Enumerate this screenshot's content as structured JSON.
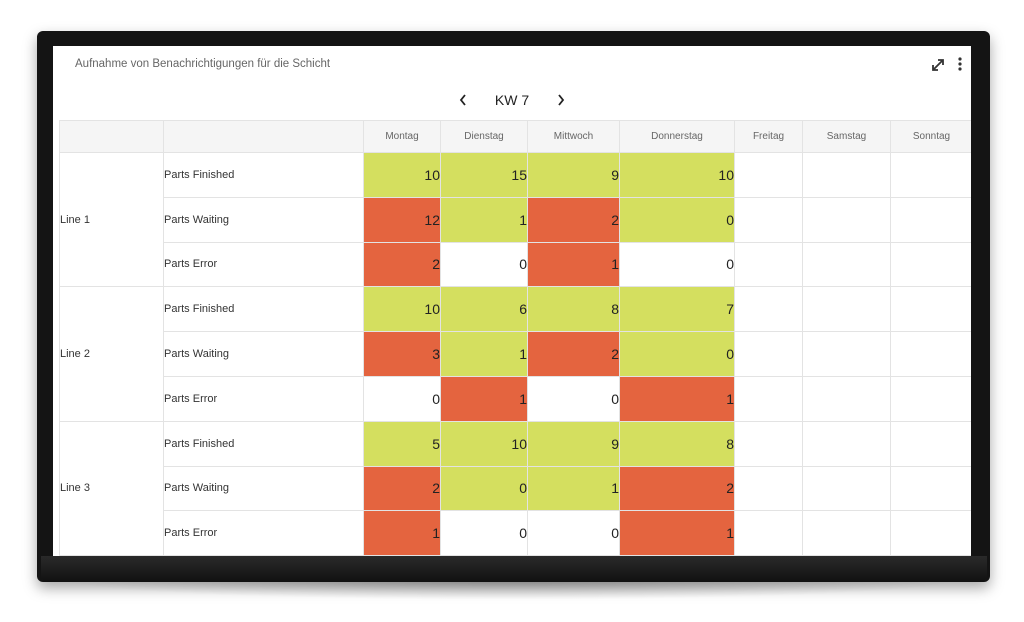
{
  "panel": {
    "title": "Aufnahme von Benachrichtigungen für die Schicht",
    "expand_icon": "expand-icon",
    "menu_icon": "more-vertical-icon"
  },
  "week_nav": {
    "label": "KW 7",
    "prev_icon": "chevron-left-icon",
    "next_icon": "chevron-right-icon"
  },
  "colors": {
    "good": "#d4df5f",
    "bad": "#e4643f",
    "neutral": "#ffffff",
    "header_bg": "#f5f5f5"
  },
  "table": {
    "days": [
      "Montag",
      "Dienstag",
      "Mittwoch",
      "Donnerstag",
      "Freitag",
      "Samstag",
      "Sonntag"
    ],
    "lines": [
      {
        "name": "Line 1",
        "rows": [
          {
            "metric": "Parts Finished",
            "values": [
              "10",
              "15",
              "9",
              "10"
            ],
            "status": [
              "good",
              "good",
              "good",
              "good"
            ]
          },
          {
            "metric": "Parts Waiting",
            "values": [
              "12",
              "1",
              "2",
              "0"
            ],
            "status": [
              "bad",
              "good",
              "bad",
              "good"
            ]
          },
          {
            "metric": "Parts Error",
            "values": [
              "2",
              "0",
              "1",
              "0"
            ],
            "status": [
              "bad",
              "neutral",
              "bad",
              "neutral"
            ]
          }
        ]
      },
      {
        "name": "Line 2",
        "rows": [
          {
            "metric": "Parts Finished",
            "values": [
              "10",
              "6",
              "8",
              "7"
            ],
            "status": [
              "good",
              "good",
              "good",
              "good"
            ]
          },
          {
            "metric": "Parts Waiting",
            "values": [
              "3",
              "1",
              "2",
              "0"
            ],
            "status": [
              "bad",
              "good",
              "bad",
              "good"
            ]
          },
          {
            "metric": "Parts Error",
            "values": [
              "0",
              "1",
              "0",
              "1"
            ],
            "status": [
              "neutral",
              "bad",
              "neutral",
              "bad"
            ]
          }
        ]
      },
      {
        "name": "Line 3",
        "rows": [
          {
            "metric": "Parts Finished",
            "values": [
              "5",
              "10",
              "9",
              "8"
            ],
            "status": [
              "good",
              "good",
              "good",
              "good"
            ]
          },
          {
            "metric": "Parts Waiting",
            "values": [
              "2",
              "0",
              "1",
              "2"
            ],
            "status": [
              "bad",
              "good",
              "good",
              "bad"
            ]
          },
          {
            "metric": "Parts Error",
            "values": [
              "1",
              "0",
              "0",
              "1"
            ],
            "status": [
              "bad",
              "neutral",
              "neutral",
              "bad"
            ]
          }
        ]
      }
    ]
  }
}
